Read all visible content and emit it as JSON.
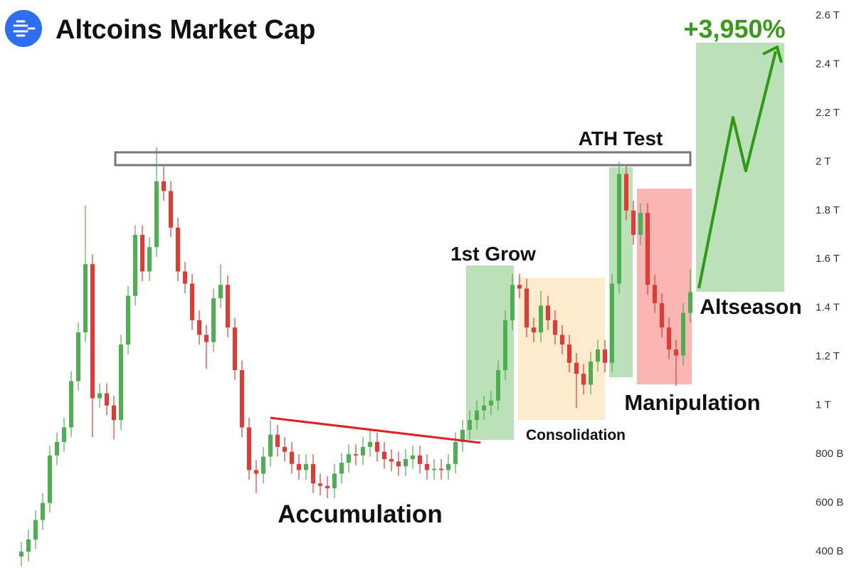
{
  "chart_data": {
    "type": "candlestick",
    "title": "Altcoins Market Cap",
    "annotations": [
      "ATH Test",
      "1st Grow",
      "Consolidation",
      "Manipulation",
      "Accumulation",
      "Altseason",
      "+3,950%"
    ],
    "ylim": [
      333,
      2664
    ],
    "yticks": [
      {
        "value": 400,
        "label": "400 B"
      },
      {
        "value": 600,
        "label": "600 B"
      },
      {
        "value": 800,
        "label": "800 B"
      },
      {
        "value": 1000,
        "label": "1 T"
      },
      {
        "value": 1200,
        "label": "1.2 T"
      },
      {
        "value": 1400,
        "label": "1.4 T"
      },
      {
        "value": 1600,
        "label": "1.6 T"
      },
      {
        "value": 1800,
        "label": "1.8 T"
      },
      {
        "value": 2000,
        "label": "2 T"
      },
      {
        "value": 2200,
        "label": "2.2 T"
      },
      {
        "value": 2400,
        "label": "2.4 T"
      },
      {
        "value": 2600,
        "label": "2.6 T"
      }
    ],
    "up_color": "#4caf50",
    "down_color": "#e53935",
    "series": {
      "open": [
        380,
        400,
        450,
        530,
        600,
        795,
        850,
        910,
        1100,
        1300,
        1580,
        1030,
        1050,
        1000,
        940,
        1250,
        1450,
        1700,
        1550,
        1650,
        1920,
        1880,
        1730,
        1550,
        1500,
        1350,
        1290,
        1260,
        1440,
        1495,
        1320,
        1145,
        910,
        735,
        720,
        790,
        880,
        830,
        810,
        760,
        735,
        760,
        680,
        670,
        660,
        720,
        765,
        800,
        795,
        830,
        850,
        810,
        780,
        770,
        750,
        780,
        795,
        760,
        735,
        740,
        735,
        760,
        850,
        900,
        940,
        980,
        1000,
        1020,
        1145,
        1350,
        1495,
        1480,
        1320,
        1300,
        1410,
        1350,
        1290,
        1250,
        1175,
        1130,
        1085,
        1180,
        1230,
        1175,
        1500,
        1950,
        1800,
        1700,
        1790,
        1495,
        1420,
        1320,
        1230,
        1205,
        1380
      ],
      "high": [
        440,
        490,
        570,
        640,
        835,
        890,
        950,
        1140,
        1340,
        1820,
        1620,
        1090,
        1090,
        1040,
        1290,
        1490,
        1740,
        1740,
        1690,
        2060,
        1980,
        1920,
        1770,
        1590,
        1540,
        1390,
        1330,
        1480,
        1580,
        1535,
        1360,
        1185,
        950,
        775,
        830,
        940,
        920,
        870,
        850,
        800,
        800,
        800,
        720,
        710,
        760,
        805,
        840,
        840,
        870,
        900,
        890,
        850,
        820,
        810,
        820,
        835,
        835,
        800,
        780,
        780,
        800,
        890,
        940,
        980,
        1020,
        1040,
        1060,
        1185,
        1390,
        1540,
        1540,
        1520,
        1360,
        1470,
        1450,
        1390,
        1330,
        1290,
        1215,
        1170,
        1220,
        1270,
        1270,
        1540,
        2000,
        1990,
        1840,
        1830,
        1830,
        1535,
        1460,
        1360,
        1270,
        1420,
        1560
      ],
      "low": [
        340,
        360,
        410,
        490,
        560,
        755,
        810,
        870,
        1060,
        1260,
        870,
        990,
        960,
        860,
        900,
        1210,
        1410,
        1510,
        1510,
        1610,
        1840,
        1690,
        1510,
        1460,
        1310,
        1250,
        1150,
        1220,
        1400,
        1280,
        1105,
        870,
        695,
        640,
        680,
        750,
        790,
        770,
        720,
        695,
        695,
        640,
        630,
        620,
        620,
        680,
        725,
        755,
        755,
        790,
        770,
        740,
        730,
        710,
        710,
        740,
        720,
        695,
        695,
        695,
        695,
        720,
        810,
        860,
        900,
        940,
        960,
        980,
        1105,
        1310,
        1440,
        1280,
        1260,
        1260,
        1310,
        1250,
        1210,
        1135,
        990,
        1045,
        1045,
        1140,
        1135,
        1135,
        1460,
        1760,
        1660,
        1660,
        1455,
        1380,
        1280,
        1190,
        1080,
        1165,
        1340
      ],
      "close": [
        400,
        450,
        530,
        600,
        795,
        850,
        910,
        1100,
        1300,
        1580,
        1030,
        1050,
        1000,
        940,
        1250,
        1450,
        1700,
        1550,
        1650,
        1920,
        1880,
        1730,
        1550,
        1500,
        1350,
        1290,
        1260,
        1440,
        1495,
        1320,
        1145,
        910,
        735,
        720,
        790,
        880,
        830,
        810,
        760,
        735,
        760,
        680,
        670,
        660,
        720,
        765,
        800,
        795,
        830,
        850,
        810,
        780,
        770,
        750,
        780,
        795,
        760,
        735,
        740,
        735,
        760,
        850,
        900,
        940,
        980,
        1000,
        1020,
        1145,
        1350,
        1495,
        1480,
        1320,
        1300,
        1410,
        1350,
        1290,
        1250,
        1175,
        1130,
        1085,
        1180,
        1230,
        1175,
        1500,
        1950,
        1800,
        1700,
        1790,
        1495,
        1420,
        1320,
        1230,
        1205,
        1380,
        1465
      ]
    }
  }
}
